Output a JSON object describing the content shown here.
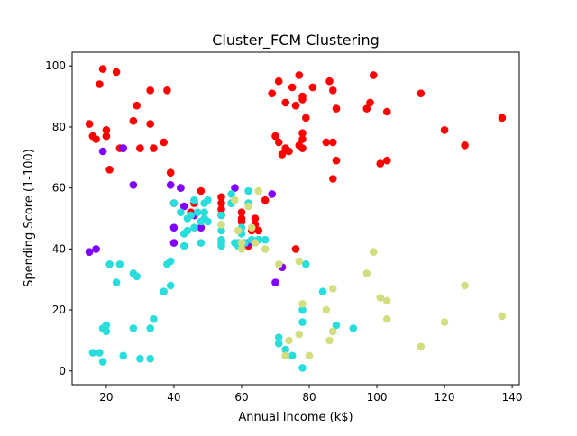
{
  "chart_data": {
    "type": "scatter",
    "title": "Cluster_FCM Clustering",
    "xlabel": "Annual Income (k$)",
    "ylabel": "Spending Score (1-100)",
    "xlim": [
      9.9,
      142.1
    ],
    "ylim": [
      -4.5,
      104.5
    ],
    "xticks": [
      20,
      40,
      60,
      80,
      100,
      120,
      140
    ],
    "xtick_labels": [
      "20",
      "40",
      "60",
      "80",
      "100",
      "120",
      "140"
    ],
    "yticks": [
      0,
      20,
      40,
      60,
      80,
      100
    ],
    "ytick_labels": [
      "0",
      "20",
      "40",
      "60",
      "80",
      "100"
    ],
    "grid": false,
    "legend": "none",
    "series": [
      {
        "color": "#ff0000",
        "points": [
          [
            15,
            81
          ],
          [
            16,
            77
          ],
          [
            17,
            76
          ],
          [
            18,
            94
          ],
          [
            19,
            99
          ],
          [
            20,
            77
          ],
          [
            20,
            79
          ],
          [
            21,
            66
          ],
          [
            23,
            98
          ],
          [
            24,
            73
          ],
          [
            25,
            73
          ],
          [
            28,
            82
          ],
          [
            29,
            87
          ],
          [
            30,
            73
          ],
          [
            33,
            92
          ],
          [
            33,
            81
          ],
          [
            34,
            73
          ],
          [
            37,
            75
          ],
          [
            38,
            92
          ],
          [
            39,
            65
          ],
          [
            40,
            55
          ],
          [
            42,
            60
          ],
          [
            45,
            52
          ],
          [
            46,
            55
          ],
          [
            48,
            59
          ],
          [
            54,
            51
          ],
          [
            54,
            55
          ],
          [
            54,
            57
          ],
          [
            54,
            53
          ],
          [
            57,
            55
          ],
          [
            60,
            52
          ],
          [
            60,
            49
          ],
          [
            60,
            50
          ],
          [
            62,
            41
          ],
          [
            63,
            46
          ],
          [
            64,
            48
          ],
          [
            64,
            50
          ],
          [
            65,
            46
          ],
          [
            67,
            56
          ],
          [
            69,
            91
          ],
          [
            70,
            77
          ],
          [
            71,
            75
          ],
          [
            71,
            95
          ],
          [
            72,
            71
          ],
          [
            73,
            73
          ],
          [
            73,
            88
          ],
          [
            74,
            72
          ],
          [
            75,
            93
          ],
          [
            76,
            87
          ],
          [
            76,
            40
          ],
          [
            77,
            97
          ],
          [
            77,
            74
          ],
          [
            78,
            90
          ],
          [
            78,
            89
          ],
          [
            78,
            76
          ],
          [
            78,
            78
          ],
          [
            78,
            73
          ],
          [
            79,
            83
          ],
          [
            81,
            93
          ],
          [
            85,
            75
          ],
          [
            86,
            95
          ],
          [
            87,
            63
          ],
          [
            87,
            75
          ],
          [
            87,
            92
          ],
          [
            88,
            69
          ],
          [
            88,
            86
          ],
          [
            97,
            86
          ],
          [
            98,
            88
          ],
          [
            99,
            97
          ],
          [
            101,
            68
          ],
          [
            103,
            85
          ],
          [
            103,
            69
          ],
          [
            113,
            91
          ],
          [
            120,
            79
          ],
          [
            126,
            74
          ],
          [
            137,
            83
          ]
        ]
      },
      {
        "color": "#8000ff",
        "points": [
          [
            15,
            39
          ],
          [
            17,
            40
          ],
          [
            19,
            72
          ],
          [
            25,
            73
          ],
          [
            28,
            61
          ],
          [
            39,
            61
          ],
          [
            40,
            42
          ],
          [
            40,
            47
          ],
          [
            42,
            60
          ],
          [
            43,
            54
          ],
          [
            46,
            51
          ],
          [
            48,
            47
          ],
          [
            58,
            60
          ],
          [
            62,
            42
          ],
          [
            69,
            58
          ],
          [
            70,
            29
          ],
          [
            72,
            34
          ]
        ]
      },
      {
        "color": "#2adddd",
        "points": [
          [
            16,
            6
          ],
          [
            18,
            6
          ],
          [
            19,
            3
          ],
          [
            19,
            14
          ],
          [
            20,
            13
          ],
          [
            20,
            15
          ],
          [
            21,
            35
          ],
          [
            23,
            29
          ],
          [
            24,
            35
          ],
          [
            25,
            5
          ],
          [
            28,
            14
          ],
          [
            28,
            32
          ],
          [
            29,
            31
          ],
          [
            30,
            4
          ],
          [
            33,
            4
          ],
          [
            33,
            14
          ],
          [
            34,
            17
          ],
          [
            37,
            26
          ],
          [
            38,
            35
          ],
          [
            39,
            28
          ],
          [
            39,
            36
          ],
          [
            40,
            55
          ],
          [
            42,
            52
          ],
          [
            43,
            45
          ],
          [
            43,
            41
          ],
          [
            44,
            46
          ],
          [
            44,
            50
          ],
          [
            45,
            51
          ],
          [
            46,
            56
          ],
          [
            46,
            47
          ],
          [
            47,
            52
          ],
          [
            48,
            42
          ],
          [
            48,
            49
          ],
          [
            49,
            52
          ],
          [
            49,
            50
          ],
          [
            49,
            55
          ],
          [
            50,
            49
          ],
          [
            50,
            56
          ],
          [
            54,
            41
          ],
          [
            54,
            42
          ],
          [
            54,
            43
          ],
          [
            54,
            46
          ],
          [
            54,
            48
          ],
          [
            54,
            51
          ],
          [
            57,
            58
          ],
          [
            57,
            55
          ],
          [
            58,
            42
          ],
          [
            59,
            42
          ],
          [
            59,
            41
          ],
          [
            60,
            47
          ],
          [
            60,
            45
          ],
          [
            61,
            42
          ],
          [
            62,
            59
          ],
          [
            62,
            55
          ],
          [
            63,
            43
          ],
          [
            63,
            43
          ],
          [
            65,
            43
          ],
          [
            65,
            43
          ],
          [
            67,
            43
          ],
          [
            71,
            9
          ],
          [
            71,
            11
          ],
          [
            73,
            7
          ],
          [
            73,
            5
          ],
          [
            75,
            5
          ],
          [
            78,
            1
          ],
          [
            78,
            16
          ],
          [
            78,
            20
          ],
          [
            79,
            35
          ],
          [
            84,
            26
          ],
          [
            87,
            13
          ],
          [
            88,
            15
          ],
          [
            93,
            14
          ]
        ]
      },
      {
        "color": "#d4dd80",
        "points": [
          [
            54,
            48
          ],
          [
            58,
            56
          ],
          [
            59,
            46
          ],
          [
            60,
            40
          ],
          [
            60,
            42
          ],
          [
            60,
            42
          ],
          [
            62,
            54
          ],
          [
            63,
            47
          ],
          [
            64,
            42
          ],
          [
            65,
            59
          ],
          [
            67,
            40
          ],
          [
            71,
            35
          ],
          [
            73,
            5
          ],
          [
            74,
            10
          ],
          [
            77,
            12
          ],
          [
            77,
            36
          ],
          [
            78,
            22
          ],
          [
            80,
            5
          ],
          [
            85,
            20
          ],
          [
            86,
            10
          ],
          [
            87,
            27
          ],
          [
            87,
            13
          ],
          [
            97,
            32
          ],
          [
            99,
            39
          ],
          [
            101,
            24
          ],
          [
            103,
            23
          ],
          [
            103,
            17
          ],
          [
            113,
            8
          ],
          [
            120,
            16
          ],
          [
            126,
            28
          ],
          [
            137,
            18
          ]
        ]
      }
    ]
  }
}
